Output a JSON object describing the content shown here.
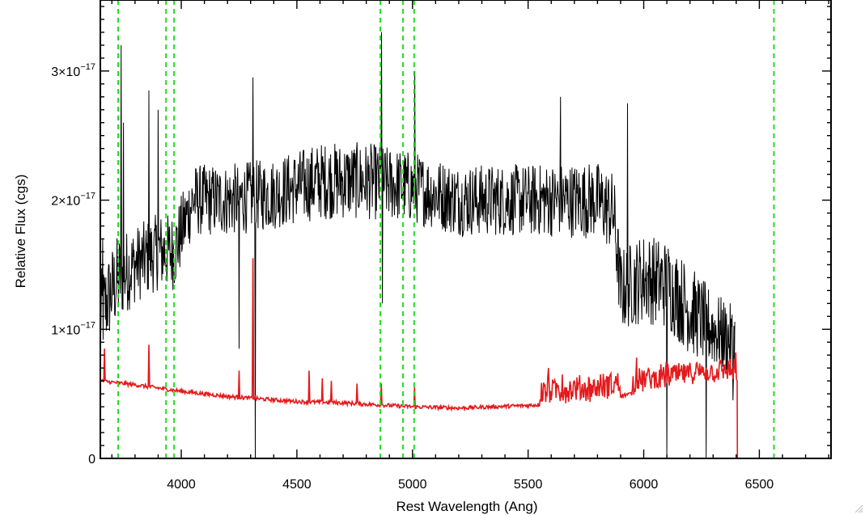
{
  "chart_data": {
    "type": "line",
    "xlabel": "Rest Wavelength (Ang)",
    "ylabel": "Relative Flux (cgs)",
    "xlim": [
      3650,
      6810
    ],
    "ylim": [
      0,
      3.55e-17
    ],
    "x_ticks": [
      4000,
      4500,
      5000,
      5500,
      6000,
      6500
    ],
    "x_tick_labels": [
      "4000",
      "4500",
      "5000",
      "5500",
      "6000",
      "6500"
    ],
    "y_ticks": [
      0,
      1e-17,
      2e-17,
      3e-17
    ],
    "y_tick_labels": [
      {
        "mantissa": "0",
        "exponent": ""
      },
      {
        "mantissa": "1×10",
        "exponent": "−17"
      },
      {
        "mantissa": "2×10",
        "exponent": "−17"
      },
      {
        "mantissa": "3×10",
        "exponent": "−17"
      }
    ],
    "grid": false,
    "series": [
      {
        "color": "#000000",
        "style": "solid",
        "note": "observed spectrum (noisy)",
        "envelope": [
          [
            3650,
            1.1e-17,
            3.5e-18
          ],
          [
            3700,
            1.3e-17,
            3.5e-18
          ],
          [
            3730,
            1.4e-17,
            3.5e-18
          ],
          [
            3800,
            1.5e-17,
            3e-18
          ],
          [
            3900,
            1.6e-17,
            3e-18
          ],
          [
            3970,
            1.6e-17,
            3e-18
          ],
          [
            4050,
            2e-17,
            2.8e-18
          ],
          [
            4200,
            2e-17,
            2.8e-18
          ],
          [
            4400,
            2.05e-17,
            2.8e-18
          ],
          [
            4600,
            2.15e-17,
            3e-18
          ],
          [
            4800,
            2.15e-17,
            3e-18
          ],
          [
            5000,
            2.1e-17,
            2.8e-18
          ],
          [
            5200,
            2e-17,
            2.8e-18
          ],
          [
            5500,
            2e-17,
            2.8e-18
          ],
          [
            5800,
            2e-17,
            3e-18
          ],
          [
            5870,
            1.9e-17,
            3.2e-18
          ],
          [
            5900,
            1.3e-17,
            3.2e-18
          ],
          [
            6000,
            1.4e-17,
            3.5e-18
          ],
          [
            6100,
            1.35e-17,
            3.5e-18
          ],
          [
            6200,
            1.15e-17,
            3.5e-18
          ],
          [
            6300,
            1e-17,
            3e-18
          ],
          [
            6390,
            9e-18,
            2.8e-18
          ]
        ],
        "spikes": [
          [
            3660,
            1.7e-17
          ],
          [
            3740,
            3.2e-17
          ],
          [
            3750,
            2.6e-17
          ],
          [
            3860,
            2.85e-17
          ],
          [
            3900,
            2.7e-17
          ],
          [
            4310,
            2.95e-17
          ],
          [
            4320,
            0.0
          ],
          [
            4250,
            8.5e-18
          ],
          [
            4865,
            3.3e-17
          ],
          [
            4870,
            1.2e-17
          ],
          [
            5010,
            3e-17
          ],
          [
            5640,
            2.8e-17
          ],
          [
            5930,
            2.75e-17
          ],
          [
            6100,
            0.0
          ],
          [
            6270,
            0.0
          ],
          [
            6385,
            4.5e-18
          ]
        ],
        "x_end": 6395
      },
      {
        "color": "#e41a1c",
        "style": "solid",
        "note": "model / error spectrum",
        "baseline": [
          [
            3650,
            6e-18
          ],
          [
            3800,
            5.7e-18
          ],
          [
            4000,
            5.2e-18
          ],
          [
            4200,
            4.8e-18
          ],
          [
            4500,
            4.4e-18
          ],
          [
            4700,
            4.3e-18
          ],
          [
            5000,
            4e-18
          ],
          [
            5200,
            3.9e-18
          ],
          [
            5500,
            4.1e-18
          ],
          [
            5800,
            4.5e-18
          ],
          [
            6000,
            5.2e-18
          ],
          [
            6200,
            5.7e-18
          ],
          [
            6400,
            6e-18
          ]
        ],
        "spikes": [
          [
            3670,
            8.5e-18
          ],
          [
            3860,
            8.8e-18
          ],
          [
            4250,
            6.8e-18
          ],
          [
            4310,
            1.55e-17
          ],
          [
            4555,
            6.8e-18
          ],
          [
            4610,
            6.2e-18
          ],
          [
            4650,
            6e-18
          ],
          [
            4760,
            5.8e-18
          ],
          [
            4865,
            5.8e-18
          ],
          [
            5010,
            5.5e-18
          ],
          [
            5590,
            7e-18
          ],
          [
            5650,
            6.5e-18
          ],
          [
            5970,
            7.8e-18
          ],
          [
            6100,
            7.5e-18
          ],
          [
            6190,
            7.2e-18
          ],
          [
            6400,
            8.2e-18
          ]
        ],
        "drop_x": 6405,
        "after_drop_y": 0.0
      }
    ],
    "vlines": {
      "color": "#22dd22",
      "style": "dashed",
      "x": [
        3727,
        3934,
        3969,
        4861,
        4959,
        5007,
        6563
      ]
    }
  }
}
